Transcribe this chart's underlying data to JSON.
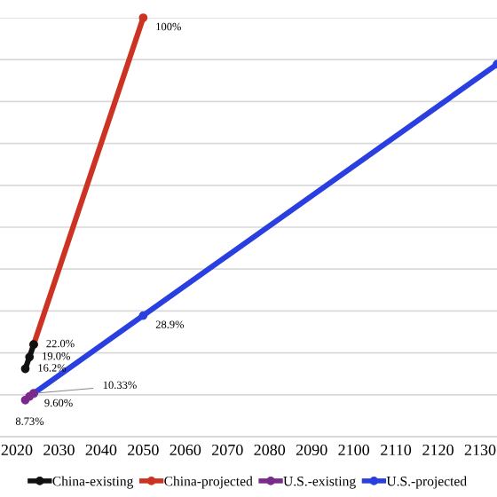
{
  "chart_data": {
    "type": "line",
    "series": [
      {
        "name": "China-existing",
        "color": "#111111",
        "x": [
          2022,
          2023,
          2024
        ],
        "values": [
          16.2,
          19.0,
          22.0
        ],
        "value_labels": [
          "16.2%",
          "19.0%",
          "22.0%"
        ]
      },
      {
        "name": "China-projected",
        "color": "#cc3322",
        "x": [
          2024,
          2050
        ],
        "values": [
          22.0,
          100
        ],
        "value_labels": [
          null,
          "100%"
        ]
      },
      {
        "name": "U.S.-existing",
        "color": "#7a2a8a",
        "x": [
          2022,
          2023,
          2024
        ],
        "values": [
          8.73,
          9.6,
          10.33
        ],
        "value_labels": [
          "8.73%",
          "9.60%",
          "10.33%"
        ]
      },
      {
        "name": "U.S.-projected",
        "color": "#2a3fe0",
        "x": [
          2024,
          2050,
          2134
        ],
        "values": [
          10.33,
          28.9,
          88.9
        ],
        "value_labels": [
          null,
          "28.9%",
          null
        ]
      }
    ],
    "xlim": [
      2016,
      2134
    ],
    "xticks": [
      2020,
      2030,
      2040,
      2050,
      2060,
      2070,
      2080,
      2090,
      2100,
      2110,
      2120,
      2130
    ],
    "ylim": [
      0,
      100
    ],
    "yticks": [
      {
        "value": 0,
        "label": null
      },
      {
        "value": 10,
        "label": null
      },
      {
        "value": 20,
        "label": null
      },
      {
        "value": 30,
        "label": null
      },
      {
        "value": 40,
        "label": null
      },
      {
        "value": 50,
        "label": null
      },
      {
        "value": 60,
        "label": null
      },
      {
        "value": 70,
        "label": null
      },
      {
        "value": 80,
        "label": null
      },
      {
        "value": 90,
        "label": null
      },
      {
        "value": 100,
        "label": null
      }
    ],
    "tick_labels": "x",
    "grid": "y",
    "legend": "bottom",
    "marker": "circle",
    "line_style": "solid"
  }
}
